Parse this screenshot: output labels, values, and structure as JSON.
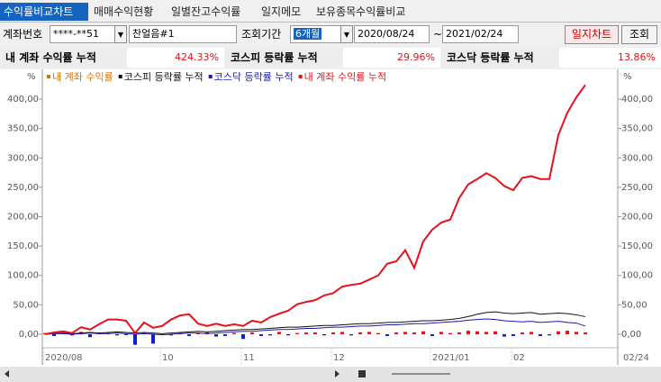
{
  "tabs": [
    "수익률비교차트",
    "매매수익현황",
    "일별잔고수익률",
    "일지메모",
    "보유종목수익률비교"
  ],
  "selected_tab": 0,
  "form": {
    "account_label": "계좌번호",
    "account": "****-**51",
    "account_name": "찬얼음#1",
    "period_label": "조회기간",
    "period": "6개월",
    "date_from": "2020/08/24",
    "date_sep": "~",
    "date_to": "2021/02/24",
    "buttons": [
      "일지차트",
      "조회"
    ]
  },
  "summary": [
    {
      "label": "내 계좌 수익률 누적",
      "value": "424.33%"
    },
    {
      "label": "코스피 등락률 누적",
      "value": "29.96%"
    },
    {
      "label": "코스닥 등락률 누적",
      "value": "13.86%"
    }
  ],
  "chart_data": {
    "type": "line",
    "unit": "%",
    "categories": [
      "2020/08",
      null,
      null,
      null,
      null,
      null,
      null,
      null,
      null,
      null,
      null,
      null,
      null,
      "10",
      null,
      null,
      null,
      null,
      null,
      null,
      null,
      null,
      "11",
      null,
      null,
      null,
      null,
      null,
      null,
      null,
      null,
      null,
      "12",
      null,
      null,
      null,
      null,
      null,
      null,
      null,
      null,
      null,
      null,
      "2021/01",
      null,
      null,
      null,
      null,
      null,
      null,
      null,
      null,
      "02",
      null,
      null,
      null,
      null,
      null,
      null,
      null,
      null
    ],
    "x_end_label": "02/24",
    "ylim": [
      -21.5,
      430.7
    ],
    "yticks": [
      {
        "value": 0,
        "label": "0,00"
      },
      {
        "value": 50,
        "label": "50,00"
      },
      {
        "value": 100,
        "label": "100,00"
      },
      {
        "value": 150,
        "label": "150,00"
      },
      {
        "value": 200,
        "label": "200,00"
      },
      {
        "value": 250,
        "label": "250,00"
      },
      {
        "value": 300,
        "label": "300,00"
      },
      {
        "value": 350,
        "label": "350,00"
      },
      {
        "value": 400,
        "label": "400,00"
      }
    ],
    "series": [
      {
        "name": "내 계좌 수익률",
        "type": "bar",
        "color": "#e07000",
        "pos_color": "#e8101a",
        "neg_color": "#1020c8",
        "values": [
          2,
          -3,
          2,
          -2,
          4,
          -5,
          3,
          2,
          -2,
          -1,
          -18,
          2,
          -16,
          -1,
          -2,
          2,
          -3,
          2,
          3,
          -4,
          -3,
          2,
          -8,
          3,
          -3,
          -2,
          4,
          -2,
          2,
          3,
          3,
          -2,
          3,
          4,
          -2,
          3,
          4,
          2,
          -3,
          3,
          4,
          3,
          5,
          -3,
          4,
          2,
          3,
          6,
          5,
          4,
          5,
          -4,
          -3,
          3,
          4,
          -3,
          -2,
          5,
          6,
          4,
          3
        ]
      },
      {
        "name": "코스피 등락률 누적",
        "type": "line",
        "color": "#111111",
        "values": [
          0,
          1,
          2,
          1,
          2,
          3,
          2,
          3,
          4,
          3,
          2,
          3,
          2,
          1,
          2,
          3,
          4,
          5,
          4,
          5,
          6,
          7,
          8,
          8,
          9,
          10,
          11,
          12,
          12,
          13,
          14,
          15,
          15,
          16,
          17,
          18,
          18,
          19,
          20,
          20,
          21,
          22,
          23,
          23,
          24,
          25,
          27,
          30,
          34,
          37,
          38,
          36,
          35,
          36,
          37,
          34,
          35,
          36,
          35,
          33,
          29.96
        ]
      },
      {
        "name": "코스닥 등락률 누적",
        "type": "line",
        "color": "#1a1ab0",
        "values": [
          0,
          1,
          1,
          0,
          1,
          2,
          1,
          1,
          2,
          1,
          0,
          1,
          0,
          -1,
          0,
          1,
          2,
          2,
          1,
          2,
          3,
          4,
          5,
          5,
          6,
          7,
          8,
          8,
          9,
          10,
          10,
          11,
          12,
          12,
          13,
          14,
          14,
          15,
          16,
          16,
          17,
          18,
          18,
          19,
          20,
          21,
          22,
          24,
          25,
          26,
          25,
          23,
          22,
          21,
          22,
          20,
          21,
          22,
          20,
          19,
          13.86
        ]
      },
      {
        "name": "내 계좌 수익률 누적",
        "type": "line",
        "color": "#e8101a",
        "values": [
          0,
          3,
          5,
          2,
          12,
          8,
          17,
          25,
          25,
          23,
          2,
          20,
          11,
          14,
          25,
          32,
          34,
          18,
          14,
          18,
          14,
          17,
          14,
          23,
          20,
          29,
          35,
          40,
          51,
          55,
          58,
          66,
          70,
          81,
          84,
          86,
          93,
          100,
          120,
          124,
          143,
          113,
          158,
          178,
          190,
          195,
          232,
          255,
          264,
          274,
          266,
          252,
          245,
          266,
          269,
          264,
          264,
          339,
          377,
          403,
          424.33
        ]
      }
    ]
  }
}
